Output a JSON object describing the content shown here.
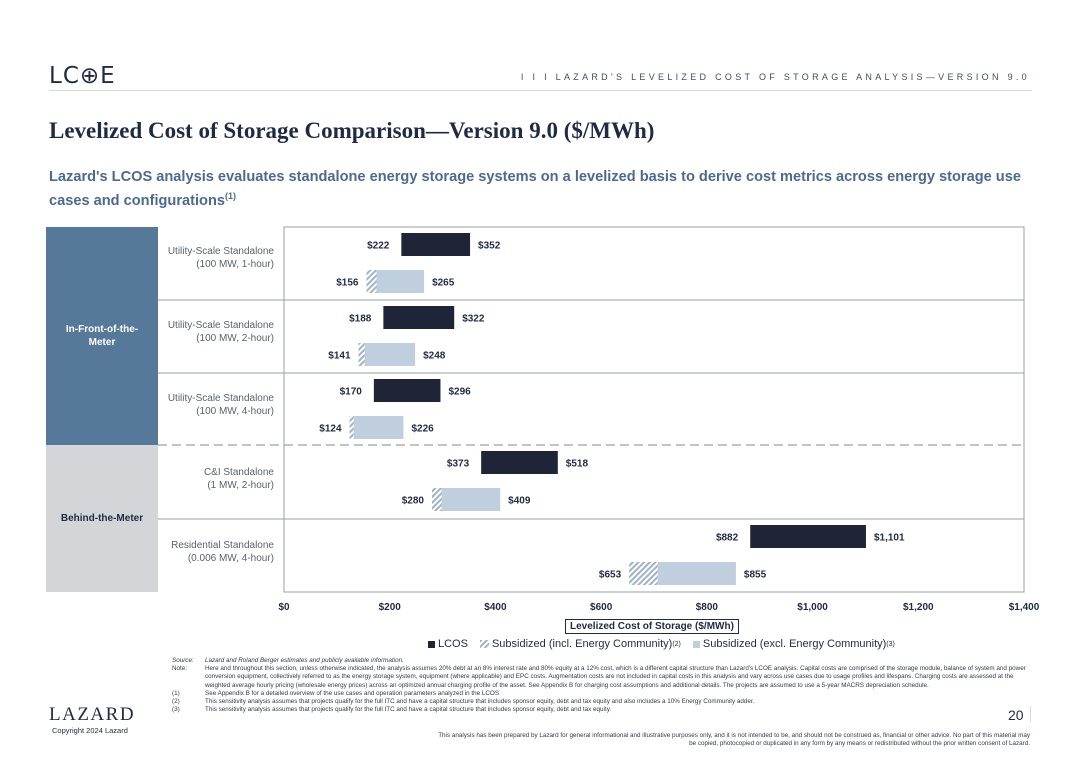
{
  "header": {
    "logo_text": "LC⊕E",
    "section_title": "I I I   LAZARD'S LEVELIZED COST OF STORAGE ANALYSIS—VERSION 9.0"
  },
  "page_title": "Levelized Cost of Storage Comparison—Version 9.0 ($/MWh)",
  "subtitle": {
    "text": "Lazard's LCOS analysis evaluates standalone energy storage systems on a levelized basis to derive cost metrics across energy storage use cases and configurations",
    "sup": "(1)"
  },
  "segments": [
    {
      "label": "In-Front-of-the-Meter"
    },
    {
      "label": "Behind-the-Meter"
    }
  ],
  "row_labels": [
    {
      "line1": "Utility-Scale Standalone",
      "line2": "(100 MW, 1-hour)"
    },
    {
      "line1": "Utility-Scale Standalone",
      "line2": "(100 MW, 2-hour)"
    },
    {
      "line1": "Utility-Scale Standalone",
      "line2": "(100 MW, 4-hour)"
    },
    {
      "line1": "C&I Standalone",
      "line2": "(1 MW, 2-hour)"
    },
    {
      "line1": "Residential Standalone",
      "line2": "(0.006 MW, 4-hour)"
    }
  ],
  "chart_data": {
    "type": "bar",
    "orientation": "horizontal-floating",
    "categories": [
      "Utility-Scale Standalone (100 MW, 1-hour)",
      "Utility-Scale Standalone (100 MW, 2-hour)",
      "Utility-Scale Standalone (100 MW, 4-hour)",
      "C&I Standalone (1 MW, 2-hour)",
      "Residential Standalone (0.006 MW, 4-hour)"
    ],
    "series": [
      {
        "name": "LCOS",
        "color": "#1f2437",
        "ranges": [
          [
            222,
            352
          ],
          [
            188,
            322
          ],
          [
            170,
            296
          ],
          [
            373,
            518
          ],
          [
            882,
            1101
          ]
        ],
        "labels": [
          [
            "$222",
            "$352"
          ],
          [
            "$188",
            "$322"
          ],
          [
            "$170",
            "$296"
          ],
          [
            "$373",
            "$518"
          ],
          [
            "$882",
            "$1,101"
          ]
        ]
      },
      {
        "name": "Subsidized (incl. Energy Community)",
        "sup": "(2)",
        "color": "#9fb3c8",
        "ranges": [
          [
            156,
            175
          ],
          [
            141,
            153
          ],
          [
            124,
            132
          ],
          [
            280,
            298
          ],
          [
            653,
            707
          ]
        ]
      },
      {
        "name": "Subsidized (excl. Energy Community)",
        "sup": "(3)",
        "color": "#bfcfdd",
        "ranges": [
          [
            175,
            265
          ],
          [
            153,
            248
          ],
          [
            132,
            226
          ],
          [
            298,
            409
          ],
          [
            707,
            855
          ]
        ],
        "labels": [
          [
            "$156",
            "$265"
          ],
          [
            "$141",
            "$248"
          ],
          [
            "$124",
            "$226"
          ],
          [
            "$280",
            "$409"
          ],
          [
            "$653",
            "$855"
          ]
        ]
      }
    ],
    "xlim": [
      0,
      1400
    ],
    "x_ticks": [
      0,
      200,
      400,
      600,
      800,
      1000,
      1200,
      1400
    ],
    "x_tick_labels": [
      "$0",
      "$200",
      "$400",
      "$600",
      "$800",
      "$1,000",
      "$1,200",
      "$1,400"
    ],
    "xlabel": "Levelized Cost of Storage ($/MWh)",
    "legend_position": "bottom",
    "grid": false
  },
  "notes": [
    {
      "key": "Source:",
      "text": "Lazard and Roland Berger estimates and publicly available information.",
      "italic": true
    },
    {
      "key": "Note:",
      "text": "Here and throughout this section, unless otherwise indicated, the analysis assumes 20% debt at an 8% interest rate and 80% equity at a 12% cost, which is a different capital structure than Lazard's LCOE analysis. Capital costs are comprised of the storage module, balance of system and power conversion equipment, collectively referred to as the energy storage system, equipment (where applicable) and EPC costs. Augmentation costs are not included in capital costs in this analysis and vary across use cases due to usage profiles and lifespans. Charging costs are assessed at the weighted average hourly pricing (wholesale energy prices) across an optimized annual charging profile of the asset. See Appendix B for charging cost assumptions and additional details. The projects are assumed to use a 5-year MACRS depreciation schedule.",
      "italic": false
    },
    {
      "key": "(1)",
      "text": "See Appendix B for a detailed overview of the use cases and operation parameters analyzed in the LCOS",
      "italic": false
    },
    {
      "key": "(2)",
      "text": "This sensitivity analysis assumes that projects qualify for the full ITC and have a capital structure that includes sponsor equity, debt and tax equity and also includes a 10% Energy Community adder.",
      "italic": false
    },
    {
      "key": "(3)",
      "text": "This sensitivity analysis assumes that projects qualify for the full ITC and have a capital structure that includes sponsor equity, debt and tax equity.",
      "italic": false
    }
  ],
  "disclaimer": "This analysis has been prepared by Lazard for general informational and illustrative purposes only, and it is not intended to be, and should not be construed as, financial or other advice. No part of this material may be copied, photocopied or duplicated in any form by any means or redistributed without the prior written consent of Lazard.",
  "footer": {
    "brand": "LAZARD",
    "copyright": "Copyright 2024 Lazard",
    "page_number": "20"
  }
}
